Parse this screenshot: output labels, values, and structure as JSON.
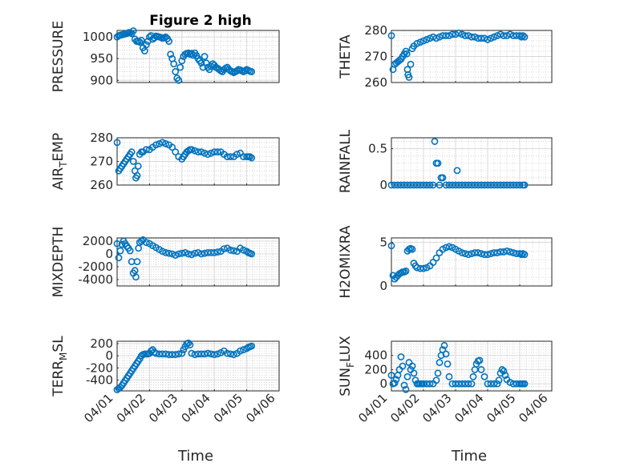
{
  "figure": {
    "title": "Figure 2 high"
  },
  "chart_data": [
    {
      "id": "pressure",
      "type": "scatter",
      "title": "Figure 2 high",
      "xlabel": "",
      "ylabel": "PRESSURE",
      "ylabel_sub": "",
      "xlim": [
        0,
        5
      ],
      "ylim": [
        895,
        1015
      ],
      "yticks": [
        900,
        950,
        1000
      ],
      "ytick_labels": [
        "900",
        "950",
        "1000"
      ],
      "xticks": [
        0,
        1,
        2,
        3,
        4,
        5
      ],
      "xtick_labels": [],
      "grid": true,
      "marker": "circle",
      "color": "#0072BD",
      "x": [
        0.0,
        0.05,
        0.1,
        0.15,
        0.2,
        0.25,
        0.3,
        0.33,
        0.36,
        0.4,
        0.45,
        0.5,
        0.55,
        0.6,
        0.65,
        0.7,
        0.75,
        0.8,
        0.85,
        0.9,
        0.95,
        1.0,
        1.05,
        1.1,
        1.15,
        1.2,
        1.25,
        1.3,
        1.35,
        1.4,
        1.45,
        1.5,
        1.55,
        1.6,
        1.65,
        1.7,
        1.75,
        1.8,
        1.85,
        1.9,
        1.95,
        2.0,
        2.05,
        2.1,
        2.15,
        2.2,
        2.25,
        2.3,
        2.35,
        2.4,
        2.45,
        2.5,
        2.55,
        2.6,
        2.65,
        2.7,
        2.75,
        2.8,
        2.85,
        2.9,
        2.95,
        3.0,
        3.05,
        3.1,
        3.15,
        3.2,
        3.25,
        3.3,
        3.35,
        3.4,
        3.45,
        3.5,
        3.55,
        3.6,
        3.65,
        3.7,
        3.75,
        3.8,
        3.85,
        3.9,
        3.95,
        4.0,
        4.05,
        4.1,
        4.15
      ],
      "y": [
        1000,
        1003,
        1004,
        1005,
        1006,
        1007,
        1008,
        1009,
        1010,
        1010,
        1008,
        1014,
        995,
        990,
        990,
        988,
        992,
        975,
        968,
        982,
        990,
        1000,
        1003,
        995,
        998,
        1002,
        1001,
        1000,
        999,
        997,
        998,
        1000,
        996,
        990,
        960,
        950,
        938,
        920,
        905,
        900,
        930,
        945,
        955,
        960,
        962,
        963,
        960,
        962,
        958,
        963,
        957,
        950,
        945,
        940,
        930,
        955,
        940,
        930,
        925,
        932,
        938,
        935,
        930,
        928,
        925,
        922,
        920,
        925,
        928,
        930,
        925,
        922,
        920,
        918,
        920,
        922,
        925,
        924,
        922,
        920,
        922,
        925,
        923,
        921,
        920
      ]
    },
    {
      "id": "theta",
      "type": "scatter",
      "xlabel": "",
      "ylabel": "THETA",
      "ylabel_sub": "",
      "xlim": [
        0,
        5
      ],
      "ylim": [
        260,
        280
      ],
      "yticks": [
        260,
        270,
        280
      ],
      "ytick_labels": [
        "260",
        "270",
        "280"
      ],
      "xticks": [
        0,
        1,
        2,
        3,
        4,
        5
      ],
      "xtick_labels": [],
      "grid": true,
      "marker": "circle",
      "color": "#0072BD",
      "x": [
        0.0,
        0.05,
        0.1,
        0.15,
        0.2,
        0.25,
        0.3,
        0.35,
        0.4,
        0.45,
        0.48,
        0.5,
        0.52,
        0.55,
        0.6,
        0.65,
        0.7,
        0.8,
        0.9,
        1.0,
        1.1,
        1.2,
        1.3,
        1.4,
        1.5,
        1.6,
        1.7,
        1.8,
        1.9,
        2.0,
        2.1,
        2.2,
        2.3,
        2.4,
        2.5,
        2.6,
        2.7,
        2.8,
        2.9,
        3.0,
        3.1,
        3.2,
        3.3,
        3.4,
        3.5,
        3.6,
        3.7,
        3.8,
        3.9,
        4.0,
        4.05,
        4.1,
        4.15
      ],
      "y": [
        278,
        265,
        267,
        267.5,
        268,
        268.5,
        269,
        270,
        271,
        272,
        271,
        265,
        263,
        262,
        267,
        273,
        274,
        275,
        275.5,
        276,
        276.5,
        277,
        277.5,
        277,
        277.5,
        278,
        278,
        278,
        278.5,
        278.5,
        279,
        278.5,
        278,
        278,
        277.5,
        277.5,
        277,
        277,
        277,
        276.5,
        277,
        277.5,
        278,
        278.5,
        278,
        278,
        278.5,
        278,
        278,
        278,
        277.5,
        278,
        277.5
      ]
    },
    {
      "id": "air-temp",
      "type": "scatter",
      "xlabel": "",
      "ylabel": "AIR",
      "ylabel_sub": "T",
      "ylabel_tail": "EMP",
      "xlim": [
        0,
        5
      ],
      "ylim": [
        260,
        280
      ],
      "yticks": [
        260,
        270,
        280
      ],
      "ytick_labels": [
        "260",
        "270",
        "280"
      ],
      "xticks": [
        0,
        1,
        2,
        3,
        4,
        5
      ],
      "xtick_labels": [],
      "grid": true,
      "marker": "circle",
      "color": "#0072BD",
      "x": [
        0.0,
        0.05,
        0.1,
        0.15,
        0.2,
        0.25,
        0.3,
        0.35,
        0.4,
        0.45,
        0.5,
        0.55,
        0.58,
        0.62,
        0.65,
        0.7,
        0.75,
        0.8,
        0.9,
        1.0,
        1.1,
        1.2,
        1.3,
        1.4,
        1.5,
        1.6,
        1.7,
        1.8,
        1.9,
        2.0,
        2.05,
        2.1,
        2.15,
        2.2,
        2.25,
        2.3,
        2.4,
        2.5,
        2.6,
        2.7,
        2.8,
        2.9,
        3.0,
        3.1,
        3.2,
        3.3,
        3.4,
        3.5,
        3.6,
        3.7,
        3.8,
        3.9,
        4.0,
        4.05,
        4.1,
        4.15
      ],
      "y": [
        278,
        266,
        267,
        268,
        269,
        270,
        271,
        272,
        273,
        274,
        270,
        266,
        263,
        264,
        268,
        273,
        274,
        274,
        275,
        275,
        276,
        277,
        277.5,
        278,
        277.5,
        277,
        276,
        274,
        272,
        271,
        272,
        273,
        274,
        274.5,
        275,
        275,
        274.5,
        274,
        274,
        273.5,
        273,
        273.5,
        274,
        274,
        274,
        273,
        272,
        272,
        272,
        273,
        273.5,
        272,
        272,
        272,
        272,
        271.5
      ]
    },
    {
      "id": "rainfall",
      "type": "scatter",
      "xlabel": "",
      "ylabel": "RAINFALL",
      "ylabel_sub": "",
      "xlim": [
        0,
        5
      ],
      "ylim": [
        0,
        0.65
      ],
      "yticks": [
        0,
        0.5
      ],
      "ytick_labels": [
        "0",
        "0.5"
      ],
      "xticks": [
        0,
        1,
        2,
        3,
        4,
        5
      ],
      "xtick_labels": [],
      "grid": true,
      "marker": "circle",
      "color": "#0072BD",
      "x": [
        0.0,
        0.1,
        0.2,
        0.3,
        0.4,
        0.5,
        0.6,
        0.7,
        0.8,
        0.9,
        1.0,
        1.1,
        1.2,
        1.3,
        1.35,
        1.4,
        1.45,
        1.5,
        1.55,
        1.6,
        1.7,
        1.8,
        1.9,
        2.0,
        2.05,
        2.1,
        2.2,
        2.3,
        2.4,
        2.5,
        2.6,
        2.7,
        2.8,
        2.9,
        3.0,
        3.1,
        3.2,
        3.3,
        3.4,
        3.5,
        3.6,
        3.7,
        3.8,
        3.9,
        4.0,
        4.1,
        4.15
      ],
      "y": [
        0,
        0,
        0,
        0,
        0,
        0,
        0,
        0,
        0,
        0,
        0,
        0,
        0,
        0,
        0.6,
        0.3,
        0.3,
        0,
        0.1,
        0.1,
        0,
        0,
        0,
        0,
        0.2,
        0,
        0,
        0,
        0,
        0,
        0,
        0,
        0,
        0,
        0,
        0,
        0,
        0,
        0,
        0,
        0,
        0,
        0,
        0,
        0,
        0,
        0
      ]
    },
    {
      "id": "mixdepth",
      "type": "scatter",
      "xlabel": "",
      "ylabel": "MIXDEPTH",
      "ylabel_sub": "",
      "xlim": [
        0,
        5
      ],
      "ylim": [
        -5000,
        2500
      ],
      "yticks": [
        -4000,
        -2000,
        0,
        2000
      ],
      "ytick_labels": [
        "-4000",
        "-2000",
        "0",
        "2000"
      ],
      "xticks": [
        0,
        1,
        2,
        3,
        4,
        5
      ],
      "xtick_labels": [],
      "grid": true,
      "marker": "circle",
      "color": "#0072BD",
      "x": [
        0.0,
        0.05,
        0.1,
        0.15,
        0.2,
        0.25,
        0.3,
        0.35,
        0.4,
        0.45,
        0.5,
        0.55,
        0.58,
        0.62,
        0.66,
        0.7,
        0.75,
        0.8,
        0.9,
        1.0,
        1.1,
        1.2,
        1.3,
        1.4,
        1.5,
        1.6,
        1.7,
        1.8,
        1.9,
        2.0,
        2.1,
        2.2,
        2.3,
        2.4,
        2.5,
        2.6,
        2.7,
        2.8,
        2.9,
        3.0,
        3.1,
        3.2,
        3.3,
        3.4,
        3.5,
        3.6,
        3.7,
        3.8,
        3.9,
        4.0,
        4.05,
        4.1,
        4.15
      ],
      "y": [
        1600,
        -600,
        500,
        1500,
        2000,
        1600,
        1200,
        900,
        500,
        -1200,
        -3000,
        -2600,
        -3600,
        -1200,
        900,
        1800,
        2000,
        2200,
        1800,
        1600,
        1300,
        1000,
        700,
        400,
        200,
        100,
        0,
        -200,
        0,
        100,
        200,
        0,
        -100,
        100,
        200,
        0,
        100,
        200,
        200,
        200,
        300,
        400,
        800,
        900,
        600,
        500,
        400,
        900,
        600,
        400,
        200,
        100,
        0
      ]
    },
    {
      "id": "h2omixra",
      "type": "scatter",
      "xlabel": "",
      "ylabel": "H2OMIXRA",
      "ylabel_sub": "",
      "xlim": [
        0,
        5
      ],
      "ylim": [
        0,
        5.5
      ],
      "yticks": [
        0,
        5
      ],
      "ytick_labels": [
        "0",
        "5"
      ],
      "xticks": [
        0,
        1,
        2,
        3,
        4,
        5
      ],
      "xtick_labels": [],
      "grid": true,
      "marker": "circle",
      "color": "#0072BD",
      "x": [
        0.0,
        0.05,
        0.1,
        0.15,
        0.2,
        0.25,
        0.3,
        0.35,
        0.4,
        0.45,
        0.5,
        0.55,
        0.6,
        0.65,
        0.7,
        0.75,
        0.8,
        0.9,
        1.0,
        1.1,
        1.2,
        1.3,
        1.4,
        1.5,
        1.6,
        1.7,
        1.8,
        1.9,
        2.0,
        2.1,
        2.2,
        2.3,
        2.4,
        2.5,
        2.6,
        2.7,
        2.8,
        2.9,
        3.0,
        3.1,
        3.2,
        3.3,
        3.4,
        3.5,
        3.6,
        3.7,
        3.8,
        3.9,
        4.0,
        4.05,
        4.1,
        4.15
      ],
      "y": [
        4.6,
        1.2,
        0.8,
        1.0,
        1.2,
        1.4,
        1.5,
        1.6,
        1.6,
        1.7,
        4.0,
        4.2,
        4.3,
        4.2,
        2.6,
        2.3,
        2.1,
        2.0,
        2.0,
        2.1,
        2.3,
        2.7,
        3.2,
        3.8,
        4.2,
        4.4,
        4.5,
        4.4,
        4.2,
        4.0,
        3.8,
        3.7,
        3.6,
        3.7,
        3.8,
        3.8,
        3.7,
        3.6,
        3.6,
        3.7,
        3.8,
        3.8,
        3.9,
        3.9,
        4.0,
        3.9,
        3.8,
        3.7,
        3.7,
        3.6,
        3.7,
        3.6
      ]
    },
    {
      "id": "terr-msl",
      "type": "scatter",
      "xlabel": "Time",
      "ylabel": "TERR",
      "ylabel_sub": "M",
      "ylabel_tail": "SL",
      "xlim": [
        0,
        5
      ],
      "ylim": [
        -580,
        240
      ],
      "yticks": [
        -400,
        -200,
        0,
        200
      ],
      "ytick_labels": [
        "-400",
        "-200",
        "0",
        "200"
      ],
      "xticks": [
        0,
        1,
        2,
        3,
        4,
        5
      ],
      "xtick_labels": [
        "04/01",
        "04/02",
        "04/03",
        "04/04",
        "04/05",
        "04/06"
      ],
      "grid": true,
      "marker": "circle",
      "color": "#0072BD",
      "x": [
        0.0,
        0.05,
        0.1,
        0.15,
        0.2,
        0.25,
        0.3,
        0.35,
        0.4,
        0.45,
        0.5,
        0.55,
        0.6,
        0.65,
        0.7,
        0.75,
        0.8,
        0.85,
        0.9,
        0.95,
        1.0,
        1.05,
        1.1,
        1.15,
        1.2,
        1.3,
        1.4,
        1.5,
        1.6,
        1.7,
        1.8,
        1.9,
        2.0,
        2.05,
        2.1,
        2.15,
        2.2,
        2.25,
        2.3,
        2.4,
        2.5,
        2.6,
        2.7,
        2.8,
        2.9,
        3.0,
        3.1,
        3.2,
        3.3,
        3.4,
        3.5,
        3.6,
        3.7,
        3.8,
        3.9,
        4.0,
        4.05,
        4.1,
        4.15
      ],
      "y": [
        -560,
        -540,
        -520,
        -490,
        -450,
        -410,
        -370,
        -330,
        -290,
        -250,
        -210,
        -170,
        -130,
        -90,
        -50,
        0,
        20,
        30,
        30,
        30,
        40,
        80,
        100,
        60,
        40,
        30,
        30,
        30,
        20,
        20,
        20,
        30,
        40,
        100,
        150,
        200,
        210,
        180,
        40,
        20,
        30,
        30,
        30,
        40,
        30,
        20,
        30,
        50,
        80,
        40,
        30,
        20,
        40,
        80,
        100,
        120,
        140,
        150,
        160
      ]
    },
    {
      "id": "sun-flux",
      "type": "scatter",
      "xlabel": "Time",
      "ylabel": "SUN",
      "ylabel_sub": "F",
      "ylabel_tail": "LUX",
      "xlim": [
        0,
        5
      ],
      "ylim": [
        -100,
        600
      ],
      "yticks": [
        0,
        200,
        400
      ],
      "ytick_labels": [
        "0",
        "200",
        "400"
      ],
      "xticks": [
        0,
        1,
        2,
        3,
        4,
        5
      ],
      "xtick_labels": [
        "04/01",
        "04/02",
        "04/03",
        "04/04",
        "04/05",
        "04/06"
      ],
      "grid": true,
      "marker": "circle",
      "color": "#0072BD",
      "x": [
        0.0,
        0.05,
        0.1,
        0.15,
        0.2,
        0.25,
        0.3,
        0.35,
        0.4,
        0.45,
        0.5,
        0.55,
        0.6,
        0.65,
        0.7,
        0.75,
        0.8,
        0.85,
        0.9,
        0.95,
        1.0,
        1.1,
        1.2,
        1.3,
        1.4,
        1.45,
        1.5,
        1.55,
        1.6,
        1.65,
        1.7,
        1.75,
        1.8,
        1.9,
        2.0,
        2.1,
        2.2,
        2.3,
        2.4,
        2.5,
        2.55,
        2.6,
        2.65,
        2.7,
        2.75,
        2.8,
        2.9,
        3.0,
        3.1,
        3.2,
        3.3,
        3.35,
        3.4,
        3.45,
        3.5,
        3.55,
        3.6,
        3.7,
        3.8,
        3.9,
        4.0,
        4.05,
        4.1,
        4.15
      ],
      "y": [
        120,
        0,
        10,
        60,
        120,
        200,
        380,
        250,
        -20,
        -80,
        100,
        300,
        200,
        250,
        150,
        50,
        0,
        0,
        0,
        0,
        0,
        0,
        0,
        0,
        50,
        150,
        300,
        400,
        480,
        540,
        420,
        280,
        100,
        0,
        0,
        0,
        0,
        0,
        0,
        0,
        100,
        200,
        280,
        320,
        330,
        200,
        100,
        0,
        0,
        0,
        0,
        50,
        150,
        200,
        180,
        120,
        60,
        20,
        0,
        0,
        0,
        0,
        0,
        0
      ]
    }
  ]
}
